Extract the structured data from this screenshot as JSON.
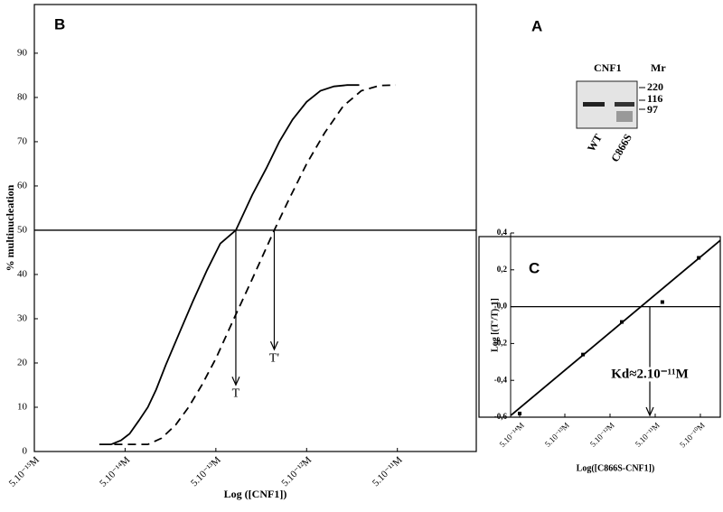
{
  "chart_data": [
    {
      "type": "line",
      "label": "B",
      "y_label": "% multinucleation",
      "x_label": "Log ([CNF1])",
      "x_scale": "log",
      "xlim": [
        5e-15,
        3.7e-10
      ],
      "ylim": [
        0,
        101
      ],
      "xticks": [
        {
          "value": 5e-15,
          "label": "5.10⁻¹⁵M"
        },
        {
          "value": 5e-14,
          "label": "5.10⁻¹⁴M"
        },
        {
          "value": 5e-13,
          "label": "5.10⁻¹³M"
        },
        {
          "value": 5e-12,
          "label": "5.10⁻¹²M"
        },
        {
          "value": 5e-11,
          "label": "5.10⁻¹¹M"
        }
      ],
      "yticks": [
        0,
        10,
        20,
        30,
        40,
        50,
        60,
        70,
        80,
        90
      ],
      "reference_line": 50,
      "series": [
        {
          "style": "solid",
          "color": "#000000",
          "x": [
            2.6e-14,
            3.5e-14,
            4.5e-14,
            5.6e-14,
            7.1e-14,
            8.9e-14,
            1.1e-13,
            1.4e-13,
            2e-13,
            2.8e-13,
            4e-13,
            5.6e-13,
            8.3e-13,
            1.26e-12,
            1.8e-12,
            2.5e-12,
            3.5e-12,
            5e-12,
            7.1e-12,
            1e-11,
            1.4e-11,
            1.9e-11
          ],
          "values": [
            1.6,
            1.6,
            2.5,
            4,
            7,
            10,
            14,
            19.5,
            27,
            34,
            41,
            47,
            50,
            58,
            64,
            70,
            75,
            79,
            81.5,
            82.5,
            82.8,
            82.8
          ]
        },
        {
          "style": "dashed",
          "color": "#000000",
          "x": [
            3.8e-14,
            8.9e-14,
            1.26e-13,
            1.8e-13,
            2.5e-13,
            3.5e-13,
            5e-13,
            7.9e-13,
            1.26e-12,
            2.2e-12,
            3.2e-12,
            5e-12,
            7.9e-12,
            1.26e-11,
            2e-11,
            3.2e-11,
            4.8e-11
          ],
          "values": [
            1.6,
            1.6,
            3,
            6,
            10,
            15,
            21,
            30,
            39,
            50,
            57,
            65,
            72,
            78,
            81.5,
            82.7,
            82.8
          ]
        }
      ],
      "annotations": [
        {
          "text": "T",
          "x": 8.3e-13,
          "y": 13
        },
        {
          "text": "T'",
          "x": 2.2e-12,
          "y": 21
        }
      ]
    },
    {
      "type": "scatter",
      "label": "C",
      "y_label": "Log [(T'/T)-1]",
      "x_label": "Log([C866S-CNF1])",
      "x_scale": "log",
      "xlim": [
        3.15e-14,
        1.38e-09
      ],
      "ylim": [
        -0.6,
        0.4
      ],
      "xticks": [
        {
          "value": 5e-14,
          "label": "5.10⁻¹⁴M"
        },
        {
          "value": 5e-13,
          "label": "5.10⁻¹³M"
        },
        {
          "value": 5e-12,
          "label": "5.10⁻¹²M"
        },
        {
          "value": 5e-11,
          "label": "5.10⁻¹¹M"
        },
        {
          "value": 5e-10,
          "label": "5.10⁻¹⁰M"
        }
      ],
      "yticks": [
        {
          "value": 0.4,
          "label": "0,4"
        },
        {
          "value": 0.2,
          "label": "0,2"
        },
        {
          "value": 0,
          "label": "0,0"
        },
        {
          "value": -0.2,
          "label": "-0,2"
        },
        {
          "value": -0.4,
          "label": "-0,4"
        },
        {
          "value": -0.6,
          "label": "-0,6"
        }
      ],
      "reference_line": 0,
      "series": [
        {
          "color": "#000000",
          "x": [
            5e-14,
            1.26e-12,
            9.1e-12,
            7.2e-11,
            4.6e-10
          ],
          "values": [
            -0.58,
            -0.26,
            -0.083,
            0.025,
            0.265
          ]
        }
      ],
      "fit_line": {
        "color": "#000000",
        "x": [
          3.2e-14,
          1.38e-09
        ],
        "values": [
          -0.59,
          0.36
        ]
      },
      "annotations": [
        {
          "text": "Kd≈2.10⁻¹¹M",
          "x": 3.8e-11,
          "y": -0.37
        }
      ]
    }
  ],
  "gel": {
    "label": "A",
    "title": "CNF1",
    "mr_label": "Mr",
    "markers": [
      "220",
      "116",
      "97"
    ],
    "lanes": [
      "WT",
      "C866S"
    ]
  }
}
